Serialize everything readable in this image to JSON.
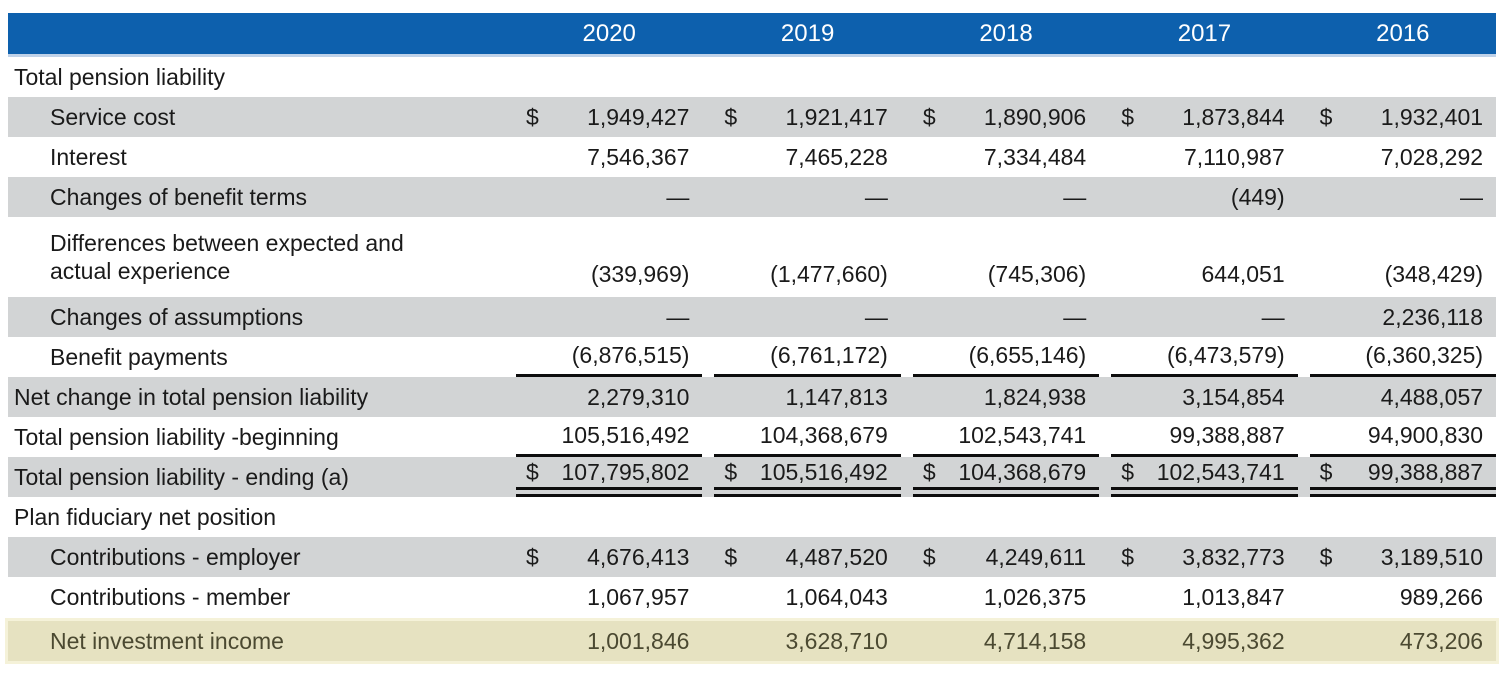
{
  "table": {
    "currency_symbol": "$",
    "header": {
      "years": [
        "2020",
        "2019",
        "2018",
        "2017",
        "2016"
      ]
    },
    "rows": [
      {
        "label": "Total pension liability",
        "section": true
      },
      {
        "label": "Service cost",
        "dollar": true,
        "values": [
          "1,949,427",
          "1,921,417",
          "1,890,906",
          "1,873,844",
          "1,932,401"
        ]
      },
      {
        "label": "Interest",
        "values": [
          "7,546,367",
          "7,465,228",
          "7,334,484",
          "7,110,987",
          "7,028,292"
        ]
      },
      {
        "label": "Changes of benefit terms",
        "values": [
          "—",
          "—",
          "—",
          "(449)",
          "—"
        ]
      },
      {
        "label": "Differences between expected and",
        "label2": "actual experience",
        "values": [
          "(339,969)",
          "(1,477,660)",
          "(745,306)",
          "644,051",
          "(348,429)"
        ]
      },
      {
        "label": "Changes of assumptions",
        "values": [
          "—",
          "—",
          "—",
          "—",
          "2,236,118"
        ]
      },
      {
        "label": "Benefit payments",
        "values": [
          "(6,876,515)",
          "(6,761,172)",
          "(6,655,146)",
          "(6,473,579)",
          "(6,360,325)"
        ]
      },
      {
        "label": "Net change in total pension liability",
        "values": [
          "2,279,310",
          "1,147,813",
          "1,824,938",
          "3,154,854",
          "4,488,057"
        ]
      },
      {
        "label": "Total pension liability -beginning",
        "values": [
          "105,516,492",
          "104,368,679",
          "102,543,741",
          "99,388,887",
          "94,900,830"
        ]
      },
      {
        "label": "Total pension liability - ending (a)",
        "dollar": true,
        "values": [
          "107,795,802",
          "105,516,492",
          "104,368,679",
          "102,543,741",
          "99,388,887"
        ]
      },
      {
        "label": "Plan fiduciary net position",
        "section": true
      },
      {
        "label": "Contributions - employer",
        "dollar": true,
        "values": [
          "4,676,413",
          "4,487,520",
          "4,249,611",
          "3,832,773",
          "3,189,510"
        ]
      },
      {
        "label": "Contributions - member",
        "values": [
          "1,067,957",
          "1,064,043",
          "1,026,375",
          "1,013,847",
          "989,266"
        ]
      },
      {
        "label": "Net investment income",
        "highlight": true,
        "values": [
          "1,001,846",
          "3,628,710",
          "4,714,158",
          "4,995,362",
          "473,206"
        ]
      }
    ]
  },
  "colors": {
    "header_bg": "#0d60ad",
    "header_text": "#ffffff",
    "header_rule": "#bfd2e9",
    "row_shade": "#d2d4d5",
    "highlight_bg": "#e6e2c1",
    "highlight_halo": "#f5f2d9",
    "highlight_text": "#4b4931",
    "text": "#1a1a1a",
    "rule": "#0d0d0d"
  }
}
